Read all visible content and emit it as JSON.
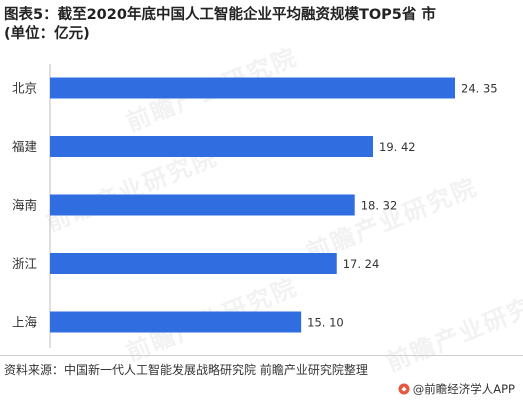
{
  "title_line1": "图表5：截至2020年底中国人工智能企业平均融资规模TOP5省 市",
  "title_line2": "(单位：亿元)",
  "source": "资料来源：中国新一代人工智能发展战略研究院 前瞻产业研究院整理",
  "brand": "@前瞻经济学人APP",
  "watermark": "前瞻产业研究院",
  "colors": {
    "bar": "#2f6de0",
    "label": "#333333",
    "axis": "#bfbfbf"
  },
  "chart_data": {
    "type": "bar",
    "orientation": "horizontal",
    "categories": [
      "北京",
      "福建",
      "海南",
      "浙江",
      "上海"
    ],
    "values": [
      24.35,
      19.42,
      18.32,
      17.24,
      15.1
    ],
    "value_labels": [
      "24. 35",
      "19. 42",
      "18. 32",
      "17. 24",
      "15. 10"
    ],
    "xlim": [
      0,
      24.35
    ],
    "grid": false,
    "legend": "none"
  }
}
